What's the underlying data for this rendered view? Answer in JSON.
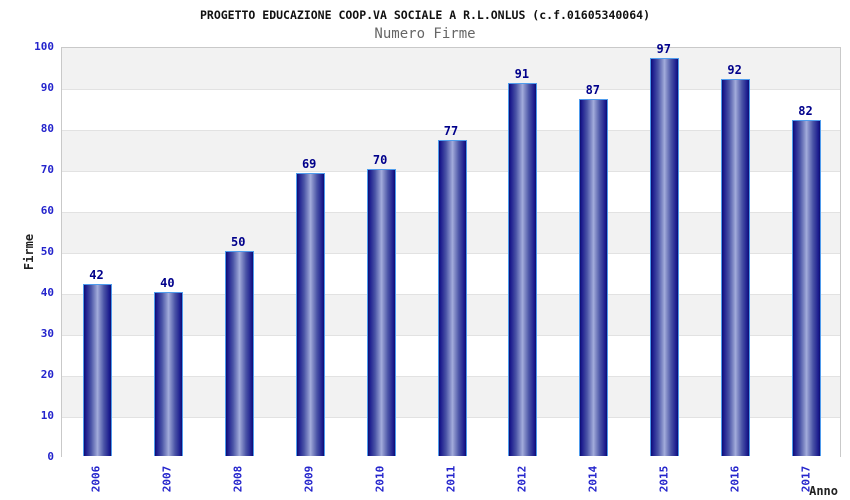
{
  "chart_data": {
    "type": "bar",
    "title": "PROGETTO EDUCAZIONE COOP.VA SOCIALE A R.L.ONLUS (c.f.01605340064)",
    "subtitle": "Numero Firme",
    "xlabel": "Anno",
    "ylabel": "Firme",
    "categories": [
      "2006",
      "2007",
      "2008",
      "2009",
      "2010",
      "2011",
      "2012",
      "2014",
      "2015",
      "2016",
      "2017"
    ],
    "values": [
      42,
      40,
      50,
      69,
      70,
      77,
      91,
      87,
      97,
      92,
      82
    ],
    "ylim": [
      0,
      100
    ],
    "yticks": [
      0,
      10,
      20,
      30,
      40,
      50,
      60,
      70,
      80,
      90,
      100
    ],
    "grid": "horizontal-bands",
    "legend": "none",
    "colors": {
      "tick_label_blue": "#2424cc",
      "value_label_navy": "#00008b",
      "bar_edge_navy": "#0d0d6e",
      "bar_center_light": "#a4addc",
      "bar_outline_lightblue": "#4f9ced",
      "band_gray": "#f2f2f2",
      "band_white": "#ffffff",
      "plot_border": "#c9c9c9",
      "title_black": "#111111",
      "subtitle_gray": "#666666"
    }
  }
}
